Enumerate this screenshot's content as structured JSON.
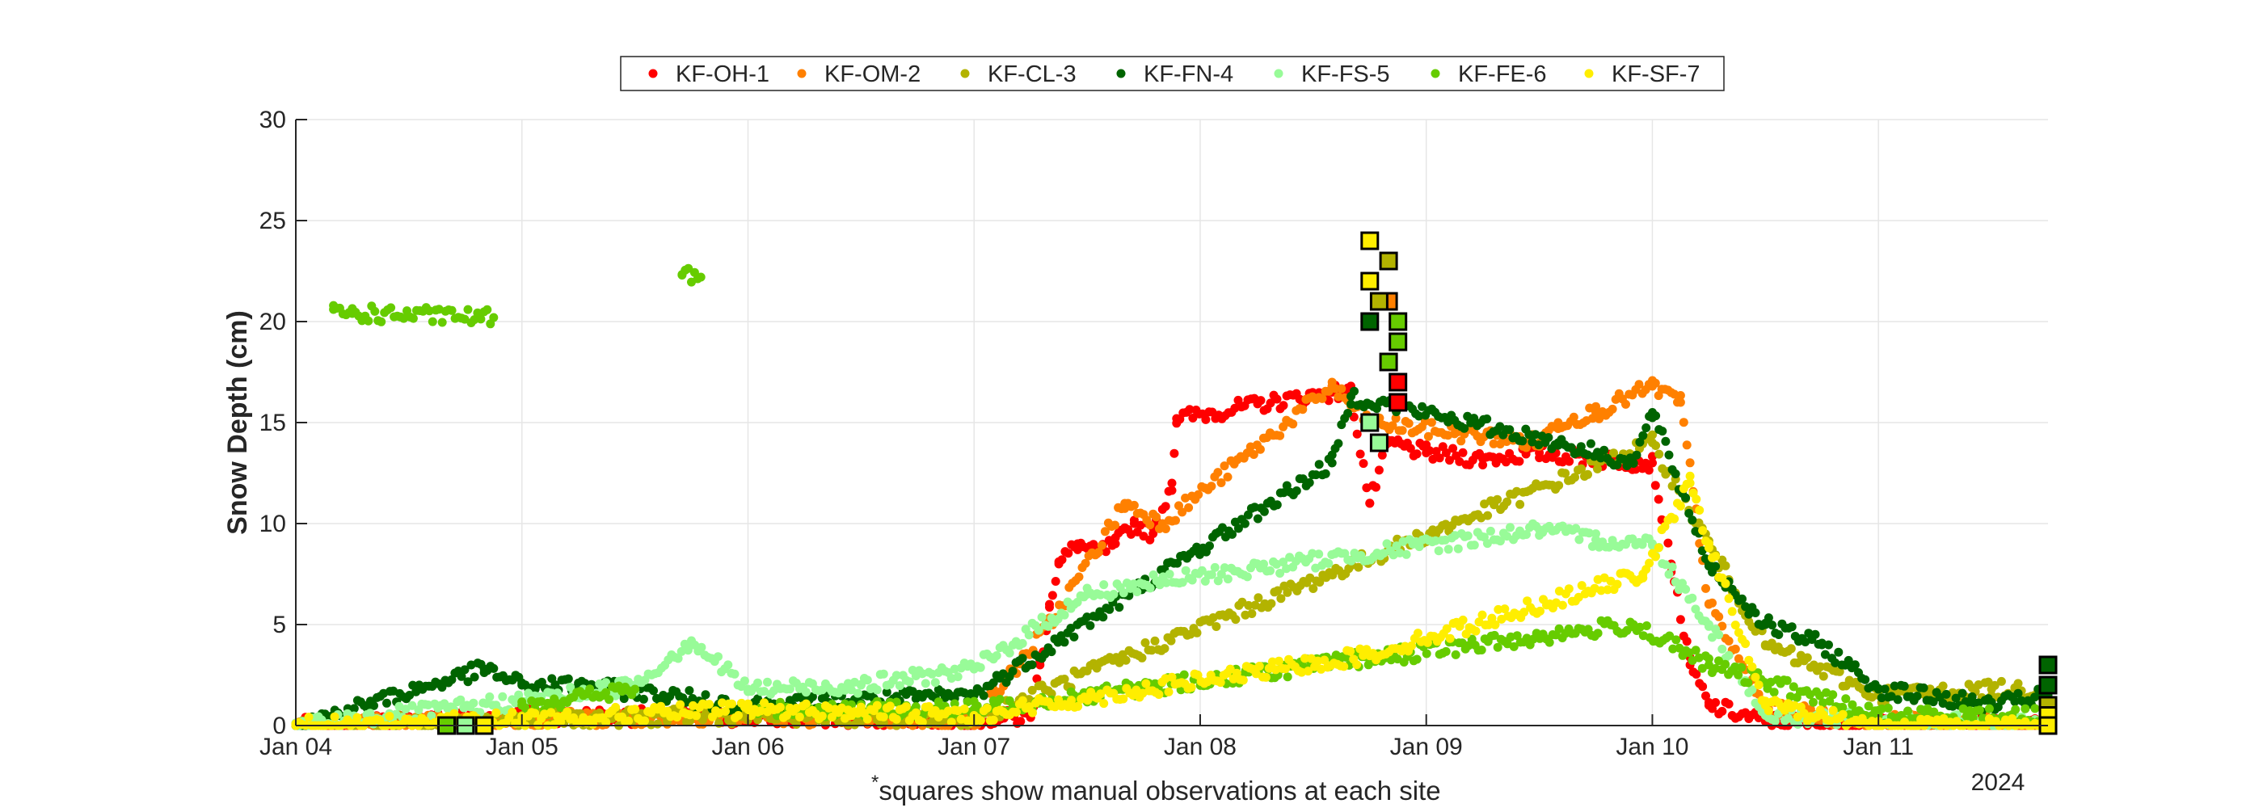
{
  "chart_data": {
    "type": "scatter",
    "ylabel": "Snow Depth (cm)",
    "xlabel": "",
    "year_label": "2024",
    "footnote_mark": "*",
    "footnote": "squares show manual observations at each site",
    "x_tick_labels": [
      "Jan 04",
      "Jan 05",
      "Jan 06",
      "Jan 07",
      "Jan 08",
      "Jan 09",
      "Jan 10",
      "Jan 11"
    ],
    "xlim": [
      "2024-01-04 00:00",
      "2024-01-11 18:00"
    ],
    "ylim": [
      0,
      30
    ],
    "y_ticks": [
      0,
      5,
      10,
      15,
      20,
      25,
      30
    ],
    "grid": true,
    "legend_position": "top, outside, horizontal",
    "marker_auto": "dots",
    "marker_manual": "squares",
    "series": [
      {
        "name": "KF-OH-1",
        "color": "#ff0000",
        "auto": [
          [
            "2024-01-04 00:00",
            0
          ],
          [
            "2024-01-05 00:00",
            0.5
          ],
          [
            "2024-01-06 00:00",
            0.4
          ],
          [
            "2024-01-07 00:00",
            0.3
          ],
          [
            "2024-01-07 06:00",
            0.4
          ],
          [
            "2024-01-07 07:00",
            3
          ],
          [
            "2024-01-07 08:00",
            6
          ],
          [
            "2024-01-07 09:00",
            8
          ],
          [
            "2024-01-07 11:00",
            9
          ],
          [
            "2024-01-07 13:00",
            8.5
          ],
          [
            "2024-01-07 15:00",
            9
          ],
          [
            "2024-01-07 17:00",
            10
          ],
          [
            "2024-01-07 19:00",
            9.5
          ],
          [
            "2024-01-07 21:00",
            12
          ],
          [
            "2024-01-07 21:30",
            15.2
          ],
          [
            "2024-01-08 14:00",
            16.5
          ],
          [
            "2024-01-08 16:00",
            16.5
          ],
          [
            "2024-01-08 18:00",
            11
          ],
          [
            "2024-01-08 20:00",
            14
          ],
          [
            "2024-01-09 00:00",
            13.5
          ],
          [
            "2024-01-09 06:00",
            13.2
          ],
          [
            "2024-01-09 12:00",
            13.5
          ],
          [
            "2024-01-09 18:00",
            13.2
          ],
          [
            "2024-01-10 00:00",
            13
          ],
          [
            "2024-01-10 02:00",
            8
          ],
          [
            "2024-01-10 04:00",
            3
          ],
          [
            "2024-01-10 06:00",
            1
          ],
          [
            "2024-01-10 12:00",
            0.2
          ],
          [
            "2024-01-11 00:00",
            0
          ],
          [
            "2024-01-11 18:00",
            0
          ]
        ],
        "manual": [
          [
            "2024-01-08 21:00",
            17
          ],
          [
            "2024-01-08 21:00",
            16
          ]
        ]
      },
      {
        "name": "KF-OM-2",
        "color": "#ff8000",
        "auto": [
          [
            "2024-01-04 00:00",
            0
          ],
          [
            "2024-01-05 00:00",
            0.3
          ],
          [
            "2024-01-06 00:00",
            0.5
          ],
          [
            "2024-01-07 00:00",
            0.2
          ],
          [
            "2024-01-07 08:00",
            5
          ],
          [
            "2024-01-07 16:00",
            11
          ],
          [
            "2024-01-07 20:00",
            10
          ],
          [
            "2024-01-08 14:00",
            16.8
          ],
          [
            "2024-01-08 18:00",
            15
          ],
          [
            "2024-01-09 12:00",
            14
          ],
          [
            "2024-01-09 14:00",
            15
          ],
          [
            "2024-01-09 18:00",
            15.5
          ],
          [
            "2024-01-10 00:00",
            16.8
          ],
          [
            "2024-01-10 03:00",
            16
          ],
          [
            "2024-01-10 06:00",
            6
          ],
          [
            "2024-01-10 12:00",
            0.8
          ],
          [
            "2024-01-11 00:00",
            0.2
          ],
          [
            "2024-01-11 18:00",
            0
          ]
        ],
        "manual": [
          [
            "2024-01-08 20:00",
            21
          ]
        ]
      },
      {
        "name": "KF-CL-3",
        "color": "#b3b300",
        "auto": [
          [
            "2024-01-04 00:00",
            0
          ],
          [
            "2024-01-05 00:00",
            0.3
          ],
          [
            "2024-01-06 00:00",
            0.5
          ],
          [
            "2024-01-07 00:00",
            0.3
          ],
          [
            "2024-01-10 00:00",
            14
          ],
          [
            "2024-01-10 06:00",
            9
          ],
          [
            "2024-01-10 12:00",
            4
          ],
          [
            "2024-01-11 00:00",
            1.5
          ],
          [
            "2024-01-11 12:00",
            1.8
          ],
          [
            "2024-01-11 18:00",
            1.7
          ]
        ],
        "manual": [
          [
            "2024-01-08 20:00",
            23
          ],
          [
            "2024-01-08 19:00",
            21
          ],
          [
            "2024-01-11 18:00",
            2
          ],
          [
            "2024-01-11 18:00",
            1
          ]
        ]
      },
      {
        "name": "KF-FN-4",
        "color": "#006400",
        "auto": [
          [
            "2024-01-04 00:00",
            0
          ],
          [
            "2024-01-04 20:00",
            2.8
          ],
          [
            "2024-01-05 00:00",
            2
          ],
          [
            "2024-01-05 06:00",
            2
          ],
          [
            "2024-01-06 00:00",
            1
          ],
          [
            "2024-01-07 00:00",
            1.5
          ],
          [
            "2024-01-08 16:00",
            16.3
          ],
          [
            "2024-01-08 14:00",
            13
          ],
          [
            "2024-01-09 14:00",
            14
          ],
          [
            "2024-01-09 22:00",
            13
          ],
          [
            "2024-01-10 00:00",
            15.5
          ],
          [
            "2024-01-10 06:00",
            8
          ],
          [
            "2024-01-10 12:00",
            5
          ],
          [
            "2024-01-10 18:00",
            4
          ],
          [
            "2024-01-11 00:00",
            1.8
          ],
          [
            "2024-01-11 12:00",
            1
          ],
          [
            "2024-01-11 18:00",
            1.5
          ]
        ],
        "manual": [
          [
            "2024-01-08 18:00",
            20
          ],
          [
            "2024-01-11 18:00",
            3
          ],
          [
            "2024-01-11 18:00",
            2
          ]
        ]
      },
      {
        "name": "KF-FS-5",
        "color": "#98fb98",
        "auto": [
          [
            "2024-01-04 00:00",
            0
          ],
          [
            "2024-01-05 00:00",
            1.2
          ],
          [
            "2024-01-05 12:00",
            2
          ],
          [
            "2024-01-05 18:00",
            4.2
          ],
          [
            "2024-01-06 00:00",
            1.8
          ],
          [
            "2024-01-06 12:00",
            2
          ],
          [
            "2024-01-07 00:00",
            2.8
          ],
          [
            "2024-01-07 12:00",
            6.5
          ],
          [
            "2024-01-07 18:00",
            7
          ],
          [
            "2024-01-09 12:00",
            9.7
          ],
          [
            "2024-01-09 18:00",
            9.2
          ],
          [
            "2024-01-10 00:00",
            9
          ],
          [
            "2024-01-10 06:00",
            5
          ],
          [
            "2024-01-10 12:00",
            0.5
          ],
          [
            "2024-01-11 18:00",
            0
          ]
        ],
        "manual": [
          [
            "2024-01-08 18:00",
            15
          ],
          [
            "2024-01-08 19:00",
            14
          ],
          [
            "2024-01-04 18:00",
            0
          ]
        ]
      },
      {
        "name": "KF-FE-6",
        "color": "#66cc00",
        "auto": [
          [
            "2024-01-04 04:00",
            20.6
          ],
          [
            "2024-01-04 06:00",
            20.4
          ],
          [
            "2024-01-04 21:00",
            20.2
          ],
          [
            "2024-01-05 17:00",
            22.3
          ],
          [
            "2024-01-05 19:00",
            22.2
          ],
          [
            "2024-01-04 00:00",
            0
          ],
          [
            "2024-01-05 00:00",
            1
          ],
          [
            "2024-01-05 12:00",
            1.8
          ],
          [
            "2024-01-06 00:00",
            0.8
          ],
          [
            "2024-01-07 00:00",
            0.8
          ],
          [
            "2024-01-09 22:00",
            5
          ],
          [
            "2024-01-10 06:00",
            3
          ],
          [
            "2024-01-11 00:00",
            0.5
          ],
          [
            "2024-01-11 18:00",
            0.5
          ]
        ],
        "manual": [
          [
            "2024-01-08 21:00",
            20
          ],
          [
            "2024-01-08 21:00",
            19
          ],
          [
            "2024-01-08 20:00",
            18
          ],
          [
            "2024-01-04 16:00",
            0
          ]
        ]
      },
      {
        "name": "KF-SF-7",
        "color": "#ffee00",
        "auto": [
          [
            "2024-01-04 00:00",
            0
          ],
          [
            "2024-01-05 00:00",
            0.3
          ],
          [
            "2024-01-06 00:00",
            0.8
          ],
          [
            "2024-01-07 00:00",
            0.5
          ],
          [
            "2024-01-08 18:00",
            3.5
          ],
          [
            "2024-01-09 23:00",
            7.5
          ],
          [
            "2024-01-10 04:00",
            12
          ],
          [
            "2024-01-10 06:00",
            9
          ],
          [
            "2024-01-10 12:00",
            1
          ],
          [
            "2024-01-11 00:00",
            0
          ],
          [
            "2024-01-11 18:00",
            0
          ]
        ],
        "manual": [
          [
            "2024-01-08 18:00",
            24
          ],
          [
            "2024-01-08 18:00",
            22
          ],
          [
            "2024-01-04 20:00",
            0
          ],
          [
            "2024-01-11 18:00",
            0.5
          ],
          [
            "2024-01-11 18:00",
            0
          ]
        ]
      }
    ]
  }
}
